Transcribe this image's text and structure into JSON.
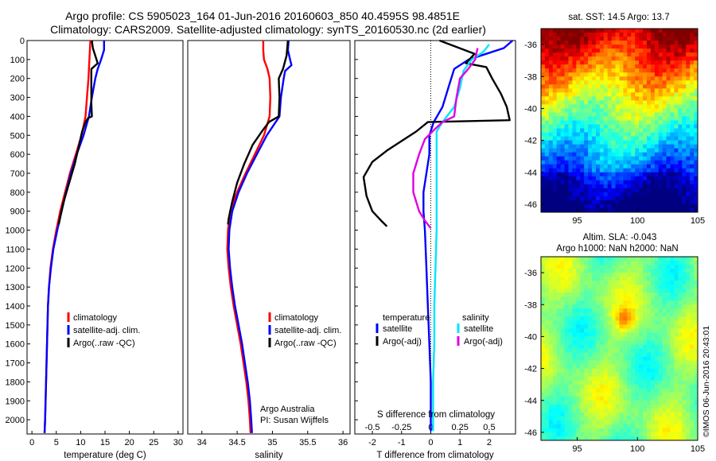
{
  "header": {
    "line1": "Argo profile: CS 5905023_164 01-Jun-2016 20160603_850 40.4595S 98.4851E",
    "line2": "Climatology: CARS2009. Satellite-adjusted climatology: synTS_20160530.nc (2d earlier)"
  },
  "colors": {
    "climatology": "#ff0000",
    "satellite": "#0000ff",
    "argo": "#000000",
    "salinity_sat": "#00e5ff",
    "salinity_argo": "#e000e0"
  },
  "chart_data": [
    {
      "id": "temperature",
      "type": "line",
      "xlabel": "temperature (deg C)",
      "ylabel": "",
      "xlim": [
        -1,
        31
      ],
      "ylim": [
        2075,
        0
      ],
      "xticks": [
        0,
        5,
        10,
        15,
        20,
        25,
        30
      ],
      "yticks": [
        0,
        100,
        200,
        300,
        400,
        500,
        600,
        700,
        800,
        900,
        1000,
        1100,
        1200,
        1300,
        1400,
        1500,
        1600,
        1700,
        1800,
        1900,
        2000
      ],
      "legend": {
        "position": "middle-left",
        "entries": [
          "climatology",
          "satellite-adj. clim.",
          "Argo(..raw -QC)"
        ]
      },
      "series": [
        {
          "name": "climatology",
          "color": "#ff0000",
          "points": [
            [
              12.0,
              0
            ],
            [
              11.9,
              50
            ],
            [
              11.8,
              100
            ],
            [
              11.6,
              200
            ],
            [
              11.3,
              300
            ],
            [
              11.0,
              400
            ],
            [
              10.2,
              500
            ],
            [
              9.0,
              600
            ],
            [
              7.8,
              700
            ],
            [
              6.8,
              800
            ],
            [
              5.8,
              900
            ],
            [
              5.0,
              1000
            ],
            [
              4.3,
              1100
            ],
            [
              3.8,
              1200
            ],
            [
              3.5,
              1300
            ],
            [
              3.3,
              1400
            ],
            [
              3.2,
              1500
            ],
            [
              3.1,
              1600
            ],
            [
              3.0,
              1700
            ],
            [
              2.9,
              1800
            ],
            [
              2.8,
              1900
            ],
            [
              2.7,
              2000
            ],
            [
              2.6,
              2070
            ]
          ]
        },
        {
          "name": "satellite-adj. clim.",
          "color": "#0000ff",
          "points": [
            [
              14.8,
              0
            ],
            [
              14.8,
              50
            ],
            [
              14.2,
              100
            ],
            [
              13.5,
              150
            ],
            [
              13.0,
              200
            ],
            [
              12.3,
              300
            ],
            [
              11.7,
              400
            ],
            [
              10.6,
              500
            ],
            [
              9.2,
              600
            ],
            [
              8.0,
              700
            ],
            [
              7.0,
              800
            ],
            [
              6.1,
              900
            ],
            [
              5.2,
              1000
            ],
            [
              4.4,
              1100
            ],
            [
              3.9,
              1200
            ],
            [
              3.5,
              1300
            ],
            [
              3.3,
              1400
            ],
            [
              3.2,
              1500
            ],
            [
              3.1,
              1600
            ],
            [
              3.0,
              1700
            ],
            [
              2.9,
              1800
            ],
            [
              2.8,
              1900
            ],
            [
              2.7,
              2000
            ],
            [
              2.6,
              2070
            ]
          ]
        },
        {
          "name": "Argo(..raw -QC)",
          "color": "#000000",
          "points": [
            [
              12.3,
              0
            ],
            [
              12.5,
              40
            ],
            [
              13.0,
              80
            ],
            [
              13.5,
              120
            ],
            [
              12.2,
              150
            ],
            [
              12.2,
              250
            ],
            [
              12.2,
              330
            ],
            [
              12.3,
              400
            ],
            [
              11.5,
              410
            ],
            [
              11.0,
              430
            ],
            [
              10.3,
              480
            ],
            [
              9.6,
              560
            ],
            [
              8.8,
              650
            ],
            [
              8.0,
              720
            ],
            [
              7.2,
              790
            ],
            [
              6.4,
              860
            ],
            [
              5.8,
              930
            ],
            [
              5.5,
              970
            ]
          ]
        }
      ]
    },
    {
      "id": "salinity",
      "type": "line",
      "xlabel": "salinity",
      "ylabel": "",
      "xlim": [
        33.8,
        36.1
      ],
      "ylim": [
        2075,
        0
      ],
      "xticks": [
        34,
        34.5,
        35,
        35.5,
        36
      ],
      "yticks": [],
      "legend": {
        "position": "middle-left",
        "entries": [
          "climatology",
          "satellite-adj. clim.",
          "Argo(..raw -QC)"
        ]
      },
      "annotations": [
        "Argo Australia",
        "PI: Susan Wijffels"
      ],
      "series": [
        {
          "name": "climatology",
          "color": "#ff0000",
          "points": [
            [
              34.87,
              0
            ],
            [
              34.87,
              50
            ],
            [
              34.88,
              100
            ],
            [
              34.93,
              150
            ],
            [
              34.96,
              200
            ],
            [
              34.97,
              300
            ],
            [
              34.96,
              400
            ],
            [
              34.88,
              500
            ],
            [
              34.75,
              600
            ],
            [
              34.62,
              700
            ],
            [
              34.5,
              800
            ],
            [
              34.4,
              900
            ],
            [
              34.37,
              1000
            ],
            [
              34.36,
              1100
            ],
            [
              34.38,
              1200
            ],
            [
              34.41,
              1300
            ],
            [
              34.45,
              1400
            ],
            [
              34.5,
              1500
            ],
            [
              34.55,
              1600
            ],
            [
              34.59,
              1700
            ],
            [
              34.63,
              1800
            ],
            [
              34.66,
              1900
            ],
            [
              34.68,
              2000
            ],
            [
              34.69,
              2070
            ]
          ]
        },
        {
          "name": "satellite-adj. clim.",
          "color": "#0000ff",
          "points": [
            [
              35.23,
              0
            ],
            [
              35.22,
              50
            ],
            [
              35.25,
              100
            ],
            [
              35.27,
              130
            ],
            [
              35.18,
              160
            ],
            [
              35.16,
              200
            ],
            [
              35.12,
              300
            ],
            [
              35.1,
              400
            ],
            [
              34.92,
              500
            ],
            [
              34.78,
              600
            ],
            [
              34.64,
              700
            ],
            [
              34.52,
              800
            ],
            [
              34.43,
              900
            ],
            [
              34.39,
              1000
            ],
            [
              34.38,
              1100
            ],
            [
              34.4,
              1200
            ],
            [
              34.43,
              1300
            ],
            [
              34.47,
              1400
            ],
            [
              34.52,
              1500
            ],
            [
              34.57,
              1600
            ],
            [
              34.61,
              1700
            ],
            [
              34.65,
              1800
            ],
            [
              34.68,
              1900
            ],
            [
              34.7,
              2000
            ],
            [
              34.71,
              2070
            ]
          ]
        },
        {
          "name": "Argo(..raw -QC)",
          "color": "#000000",
          "points": [
            [
              35.22,
              0
            ],
            [
              35.2,
              80
            ],
            [
              35.15,
              150
            ],
            [
              35.09,
              200
            ],
            [
              35.1,
              300
            ],
            [
              35.09,
              400
            ],
            [
              34.95,
              430
            ],
            [
              34.85,
              480
            ],
            [
              34.72,
              550
            ],
            [
              34.6,
              650
            ],
            [
              34.5,
              750
            ],
            [
              34.43,
              850
            ],
            [
              34.38,
              940
            ],
            [
              34.37,
              970
            ]
          ]
        }
      ]
    },
    {
      "id": "differences",
      "type": "line",
      "xlabel": "T difference from climatology",
      "xlabel2": "S difference from climatology",
      "xlim": [
        -2.6,
        2.9
      ],
      "xlim2": [
        -0.65,
        0.725
      ],
      "ylim": [
        2075,
        0
      ],
      "xticks": [
        -2,
        -1,
        0,
        1,
        2
      ],
      "xticks2": [
        -0.5,
        -0.25,
        0,
        0.25,
        0.5
      ],
      "xticklabels2": [
        "-0.5",
        "-0.25",
        "0",
        "0.25",
        "0.5"
      ],
      "yticks": [],
      "legend": {
        "position": "middle",
        "temperature_title": "temperature",
        "salinity_title": "salinity",
        "entries": [
          "satellite",
          "Argo(-adj)",
          "satellite",
          "Argo(-adj)"
        ]
      },
      "series": [
        {
          "name": "satellite",
          "group": "temperature",
          "color": "#0000ff",
          "points": [
            [
              2.8,
              0
            ],
            [
              2.5,
              40
            ],
            [
              1.9,
              70
            ],
            [
              1.3,
              100
            ],
            [
              0.8,
              150
            ],
            [
              0.6,
              250
            ],
            [
              0.4,
              350
            ],
            [
              0.1,
              430
            ],
            [
              -0.05,
              500
            ],
            [
              -0.05,
              600
            ],
            [
              -0.15,
              700
            ],
            [
              -0.25,
              800
            ],
            [
              -0.25,
              900
            ],
            [
              -0.2,
              1000
            ],
            [
              -0.15,
              1200
            ],
            [
              -0.1,
              1400
            ],
            [
              -0.05,
              1600
            ],
            [
              0,
              1800
            ],
            [
              0,
              2000
            ],
            [
              0,
              2060
            ]
          ]
        },
        {
          "name": "Argo(-adj)",
          "group": "temperature",
          "color": "#000000",
          "points": [
            [
              0.3,
              0
            ],
            [
              1.5,
              70
            ],
            [
              1.2,
              120
            ],
            [
              1.9,
              140
            ],
            [
              2.1,
              200
            ],
            [
              2.4,
              280
            ],
            [
              2.6,
              350
            ],
            [
              2.7,
              420
            ],
            [
              -0.1,
              430
            ],
            [
              -0.5,
              480
            ],
            [
              -1.0,
              530
            ],
            [
              -1.5,
              580
            ],
            [
              -2.0,
              640
            ],
            [
              -2.3,
              720
            ],
            [
              -2.2,
              820
            ],
            [
              -2.0,
              900
            ],
            [
              -1.7,
              950
            ],
            [
              -1.5,
              980
            ]
          ]
        },
        {
          "name": "satellite",
          "group": "salinity",
          "color": "#00e5ff",
          "points": [
            [
              0.5,
              20
            ],
            [
              0.45,
              60
            ],
            [
              0.35,
              100
            ],
            [
              0.28,
              160
            ],
            [
              0.25,
              250
            ],
            [
              0.2,
              350
            ],
            [
              0.1,
              430
            ],
            [
              0.05,
              480
            ],
            [
              0.05,
              600
            ],
            [
              0.05,
              800
            ],
            [
              0.05,
              1000
            ],
            [
              0.04,
              1200
            ],
            [
              0.03,
              1400
            ],
            [
              0.03,
              1600
            ],
            [
              0.02,
              1800
            ],
            [
              0.02,
              2000
            ],
            [
              0.02,
              2060
            ]
          ]
        },
        {
          "name": "Argo(-adj)",
          "group": "salinity",
          "color": "#e000e0",
          "points": [
            [
              0.4,
              40
            ],
            [
              0.38,
              100
            ],
            [
              0.32,
              150
            ],
            [
              0.25,
              200
            ],
            [
              0.22,
              300
            ],
            [
              0.2,
              400
            ],
            [
              0.1,
              430
            ],
            [
              0.03,
              470
            ],
            [
              -0.05,
              520
            ],
            [
              -0.1,
              600
            ],
            [
              -0.15,
              700
            ],
            [
              -0.15,
              800
            ],
            [
              -0.1,
              900
            ],
            [
              -0.05,
              950
            ],
            [
              0,
              990
            ]
          ]
        }
      ]
    },
    {
      "id": "sst_map",
      "type": "heatmap",
      "title": "sat. SST: 14.5 Argo: 13.7",
      "xlim": [
        92,
        105
      ],
      "ylim": [
        -46.5,
        -35
      ],
      "xticks": [
        95,
        100,
        105
      ],
      "yticks": [
        -36,
        -38,
        -40,
        -42,
        -44,
        -46
      ]
    },
    {
      "id": "sla_map",
      "type": "heatmap",
      "title": "Altim. SLA: -0.043",
      "subtitle": "Argo h1000: NaN h2000: NaN",
      "xlim": [
        92,
        105
      ],
      "ylim": [
        -46.5,
        -35
      ],
      "xticks": [
        95,
        100,
        105
      ],
      "yticks": [
        -36,
        -38,
        -40,
        -42,
        -44,
        -46
      ]
    }
  ],
  "side_label": "©IMOS 06-Jun-2016 20:43:01"
}
